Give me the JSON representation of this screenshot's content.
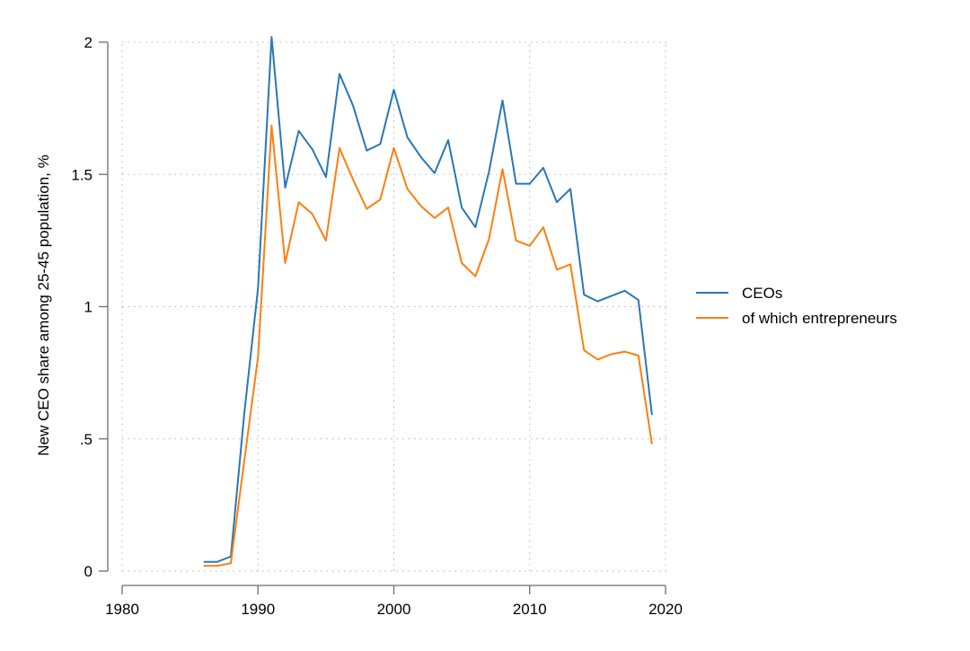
{
  "chart_data": {
    "type": "line",
    "title": "",
    "xlabel": "",
    "ylabel": "New CEO share among 25-45 population, %",
    "xlim": [
      1980,
      2020
    ],
    "ylim": [
      0,
      2
    ],
    "xticks": [
      1980,
      1990,
      2000,
      2010,
      2020
    ],
    "yticks": [
      0,
      0.5,
      1,
      1.5,
      2
    ],
    "ytick_labels": [
      "0",
      ".5",
      "1",
      "1.5",
      "2"
    ],
    "grid": "dotted",
    "legend_position": "right",
    "x": [
      1986,
      1987,
      1988,
      1989,
      1990,
      1991,
      1992,
      1993,
      1994,
      1995,
      1996,
      1997,
      1998,
      1999,
      2000,
      2001,
      2002,
      2003,
      2004,
      2005,
      2006,
      2007,
      2008,
      2009,
      2010,
      2011,
      2012,
      2013,
      2014,
      2015,
      2016,
      2017,
      2018,
      2019
    ],
    "series": [
      {
        "name": "CEOs",
        "color": "#2a77b4",
        "values": [
          0.035,
          0.035,
          0.055,
          0.6,
          1.07,
          2.02,
          1.45,
          1.665,
          1.595,
          1.49,
          1.88,
          1.76,
          1.59,
          1.615,
          1.82,
          1.64,
          1.565,
          1.505,
          1.63,
          1.375,
          1.3,
          1.51,
          1.78,
          1.465,
          1.465,
          1.525,
          1.395,
          1.445,
          1.045,
          1.02,
          1.04,
          1.06,
          1.025,
          0.59
        ]
      },
      {
        "name": "of which entrepreneurs",
        "color": "#fd7f0e",
        "values": [
          0.02,
          0.02,
          0.03,
          0.42,
          0.81,
          1.685,
          1.165,
          1.395,
          1.35,
          1.25,
          1.6,
          1.48,
          1.37,
          1.405,
          1.6,
          1.445,
          1.38,
          1.335,
          1.375,
          1.165,
          1.115,
          1.255,
          1.52,
          1.25,
          1.23,
          1.3,
          1.14,
          1.16,
          0.835,
          0.8,
          0.82,
          0.83,
          0.815,
          0.48
        ]
      }
    ]
  }
}
